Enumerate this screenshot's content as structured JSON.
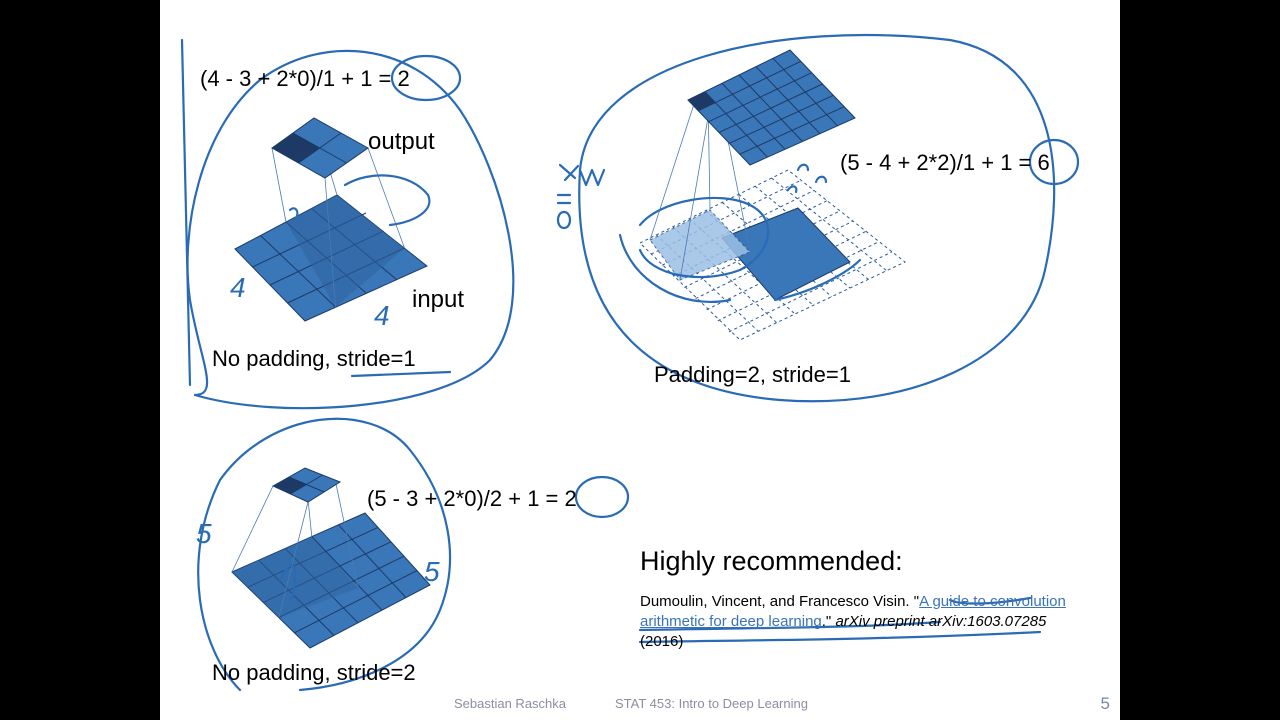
{
  "slide": {
    "panel1": {
      "equation": "(4 - 3 + 2*0)/1 + 1 = 2",
      "output_label": "output",
      "input_label": "input",
      "caption": "No padding, stride=1",
      "handwritten": [
        "4",
        "4"
      ]
    },
    "panel2": {
      "equation": "(5 - 4 + 2*2)/1 + 1 = 6",
      "caption": "Padding=2, stride=1"
    },
    "panel3": {
      "equation": "(5 - 3 + 2*0)/2 + 1 = 2",
      "caption": "No padding, stride=2",
      "handwritten": [
        "5",
        "5"
      ]
    },
    "recommend": {
      "heading": "Highly recommended:",
      "authors": "Dumoulin, Vincent, and Francesco Visin. \"",
      "link": "A guide to convolution arithmetic for deep learning",
      "after_link": ".\" ",
      "journal": "arXiv preprint arXiv:1603.07285",
      "year": " (2016)"
    },
    "footer": {
      "author": "Sebastian Raschka",
      "course": "STAT 453: Intro to Deep Learning",
      "page": "5"
    },
    "colors": {
      "grid": "#3a77b8",
      "ink": "#2a6bb5",
      "dark": "#1d3a66"
    }
  }
}
